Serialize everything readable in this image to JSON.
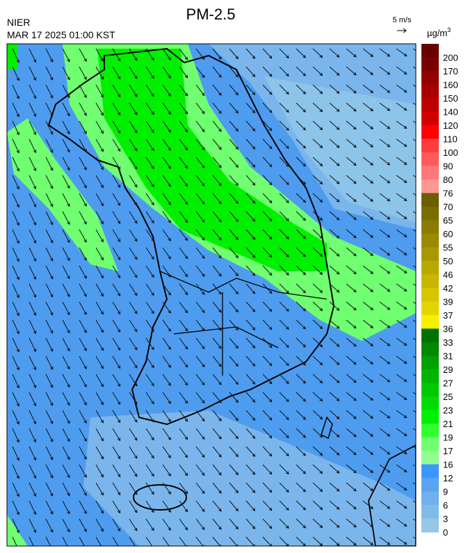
{
  "header": {
    "title": "PM-2.5",
    "agency": "NIER",
    "timestamp": "MAR 17 2025 01:00 KST",
    "wind_scale": "5 m/s"
  },
  "legend": {
    "unit": {
      "base": "µg/m",
      "exponent": "3"
    },
    "labels": [
      200,
      170,
      160,
      150,
      140,
      120,
      110,
      100,
      90,
      80,
      76,
      70,
      65,
      60,
      55,
      50,
      46,
      42,
      39,
      37,
      36,
      33,
      31,
      29,
      27,
      25,
      23,
      21,
      19,
      17,
      16,
      12,
      9,
      6,
      3,
      0
    ],
    "colors": [
      "#680000",
      "#7d0000",
      "#930000",
      "#a80000",
      "#be0000",
      "#d40000",
      "#ff0000",
      "#ff3c3c",
      "#ff5a5a",
      "#ff7878",
      "#ff9696",
      "#6b5f00",
      "#7a6d00",
      "#8a7c00",
      "#998a00",
      "#a89900",
      "#b8a800",
      "#c8b600",
      "#d7c500",
      "#e6d400",
      "#f5f000",
      "#007000",
      "#008800",
      "#00a000",
      "#00b400",
      "#00c800",
      "#00dc00",
      "#00f000",
      "#30ff30",
      "#70ff70",
      "#90ff90",
      "#3c96ff",
      "#5aa5f0",
      "#70b0ec",
      "#80bbe8",
      "#96c8e6"
    ]
  }
}
